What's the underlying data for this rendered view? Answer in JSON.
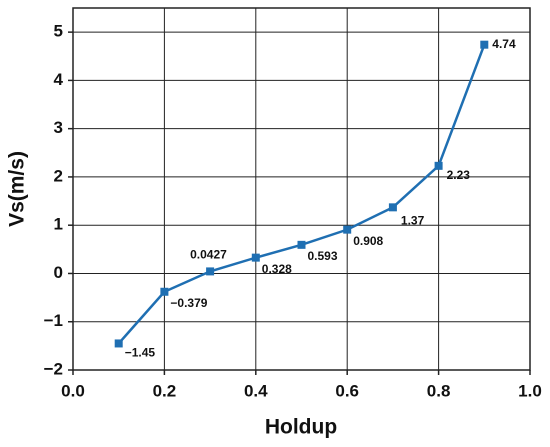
{
  "chart_data": {
    "type": "line",
    "x_label": "Holdup",
    "y_label": "Vs(m/s)",
    "x": [
      0.1,
      0.2,
      0.3,
      0.4,
      0.5,
      0.6,
      0.7,
      0.8,
      0.9
    ],
    "series": [
      {
        "name": "Vs",
        "color": "#1f6fb2",
        "values": [
          -1.45,
          -0.379,
          0.0427,
          0.328,
          0.593,
          0.908,
          1.37,
          2.23,
          4.74
        ],
        "value_labels": [
          "−1.45",
          "−0.379",
          "0.0427",
          "0.328",
          "0.593",
          "0.908",
          "1.37",
          "2.23",
          "4.74"
        ]
      }
    ],
    "xlim": [
      0,
      1
    ],
    "xticks": [
      {
        "value": 0,
        "label": "0.0"
      },
      0.2,
      0.4,
      0.6,
      0.8,
      {
        "value": 1,
        "label": "1.0"
      }
    ],
    "ylim": [
      -2,
      5.5
    ],
    "yticks": [
      {
        "value": -2,
        "label": "−2"
      },
      {
        "value": -1,
        "label": "−1"
      },
      0,
      1,
      2,
      3,
      4,
      5
    ],
    "grid": true
  }
}
